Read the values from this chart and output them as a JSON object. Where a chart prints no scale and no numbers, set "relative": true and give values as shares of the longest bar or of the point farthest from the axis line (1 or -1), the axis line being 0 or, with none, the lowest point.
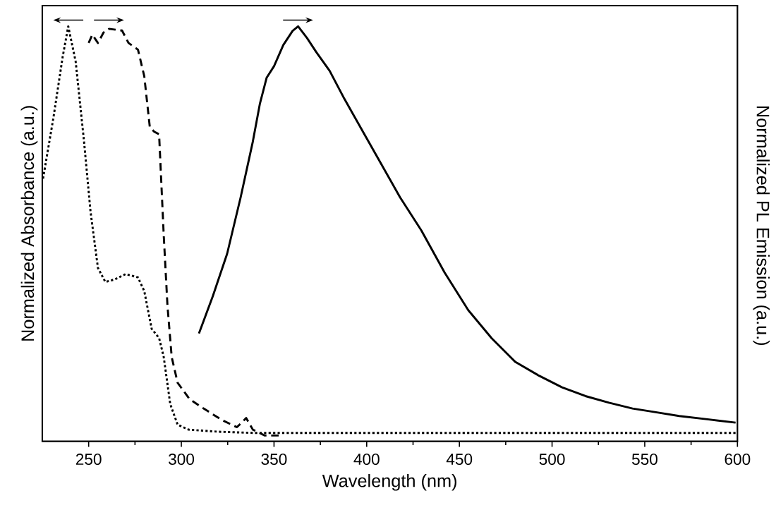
{
  "chart_data": {
    "type": "line",
    "xlabel": "Wavelength (nm)",
    "ylabel": "Normalized Absorbance (a.u.)",
    "y2label": "Normalized PL Emission (a.u.)",
    "relative": true,
    "xlim": [
      225,
      600
    ],
    "xticks": [
      250,
      300,
      350,
      400,
      450,
      500,
      550,
      600
    ],
    "marker": "none",
    "series": [
      {
        "color": "#000000",
        "line_style": "dotted",
        "x": [
          225.4,
          231,
          236,
          239,
          243,
          247.5,
          251,
          255,
          259,
          264,
          270,
          276.6,
          280,
          284,
          288,
          290.5,
          294,
          298,
          304,
          320,
          340,
          360,
          400,
          450,
          500,
          550,
          600
        ],
        "values": [
          0.633,
          0.78,
          0.927,
          1.0,
          0.915,
          0.723,
          0.554,
          0.418,
          0.384,
          0.39,
          0.403,
          0.395,
          0.362,
          0.271,
          0.249,
          0.203,
          0.09,
          0.04,
          0.028,
          0.023,
          0.02,
          0.02,
          0.02,
          0.02,
          0.02,
          0.02,
          0.02
        ]
      },
      {
        "color": "#000000",
        "line_style": "dashed",
        "axis": "y2",
        "x": [
          250,
          252,
          255,
          258,
          261,
          268,
          271.5,
          276.6,
          280,
          283,
          285.4,
          288,
          290.5,
          292.5,
          294.8,
          298,
          304.4,
          312,
          322,
          330,
          335,
          338.6,
          345,
          352.5
        ],
        "values": [
          0.96,
          0.98,
          0.96,
          0.985,
          0.994,
          0.99,
          0.96,
          0.944,
          0.88,
          0.757,
          0.746,
          0.74,
          0.497,
          0.328,
          0.203,
          0.141,
          0.102,
          0.079,
          0.051,
          0.034,
          0.056,
          0.028,
          0.014,
          0.014
        ]
      },
      {
        "color": "#000000",
        "line_style": "solid",
        "axis": "y2",
        "x": [
          309.5,
          317,
          324.7,
          332,
          338.6,
          342.4,
          346,
          350,
          355,
          360,
          363,
          367.8,
          372.8,
          380,
          388,
          398,
          408,
          418,
          429.5,
          442,
          454.8,
          467.5,
          480,
          493,
          505.4,
          518,
          530.7,
          543.4,
          556,
          568.6,
          583.8,
          599
        ],
        "values": [
          0.26,
          0.35,
          0.452,
          0.588,
          0.723,
          0.814,
          0.876,
          0.904,
          0.955,
          0.989,
          1.0,
          0.972,
          0.938,
          0.893,
          0.825,
          0.746,
          0.667,
          0.588,
          0.508,
          0.407,
          0.316,
          0.248,
          0.192,
          0.158,
          0.13,
          0.109,
          0.093,
          0.079,
          0.07,
          0.061,
          0.053,
          0.045
        ]
      }
    ]
  }
}
